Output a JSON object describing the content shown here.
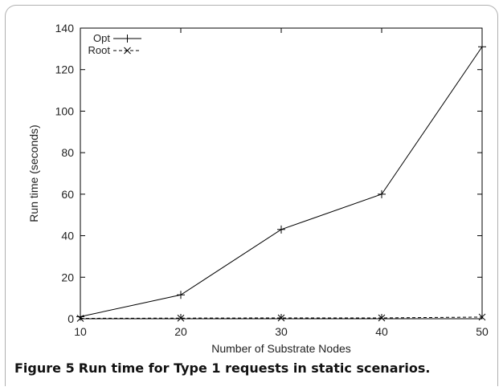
{
  "caption": {
    "label": "Figure 5",
    "text": "Run time for Type 1 requests in static scenarios."
  },
  "chart_data": {
    "type": "line",
    "title": "",
    "xlabel": "Number of Substrate Nodes",
    "ylabel": "Run time (seconds)",
    "x": [
      10,
      20,
      30,
      40,
      50
    ],
    "xlim": [
      10,
      50
    ],
    "ylim": [
      0,
      140
    ],
    "xticks": [
      "10",
      "20",
      "30",
      "40",
      "50"
    ],
    "yticks": [
      "0",
      "20",
      "40",
      "60",
      "80",
      "100",
      "120",
      "140"
    ],
    "legend_position": "top-left",
    "grid": false,
    "series": [
      {
        "name": "Opt",
        "values": [
          1,
          11.5,
          43,
          60,
          131
        ],
        "marker": "plus",
        "line": "solid"
      },
      {
        "name": "Root",
        "values": [
          0.2,
          0.3,
          0.4,
          0.4,
          0.8
        ],
        "marker": "x",
        "line": "dashed"
      }
    ]
  }
}
